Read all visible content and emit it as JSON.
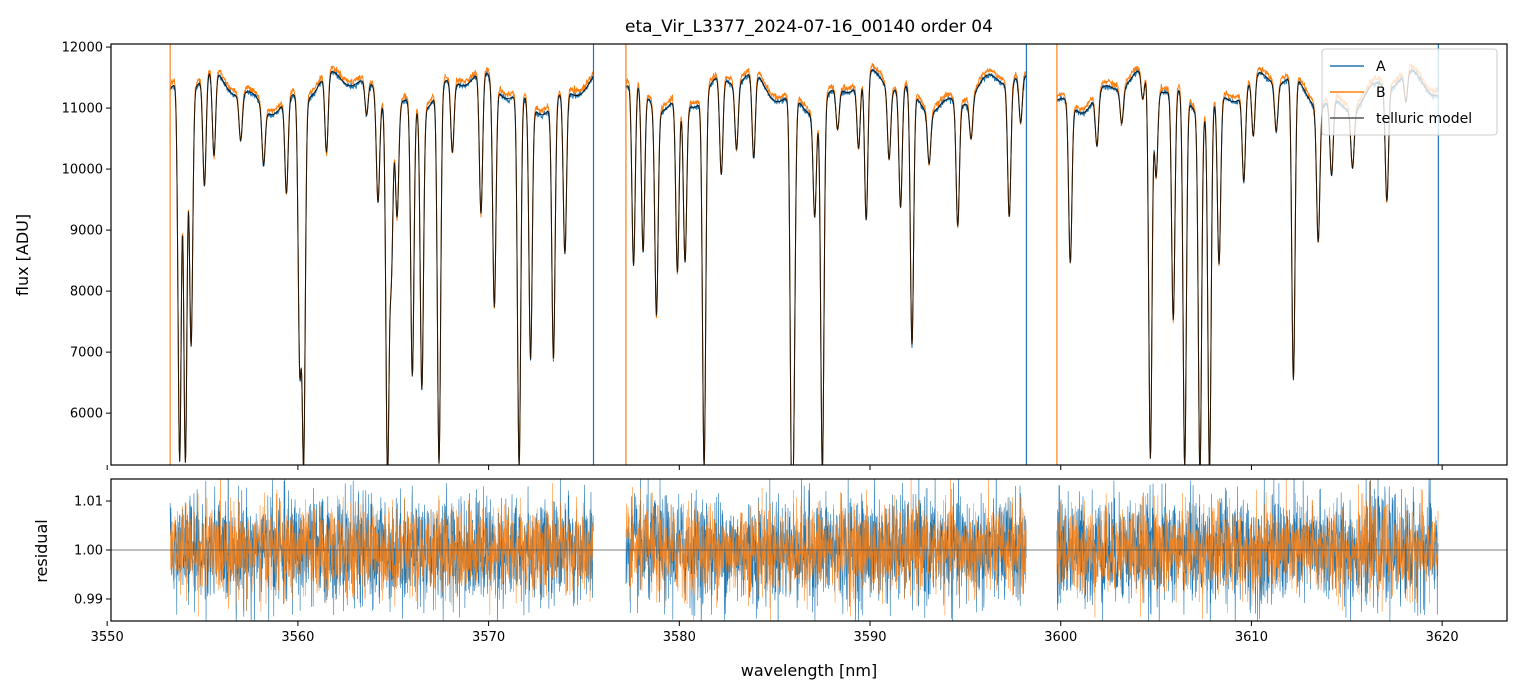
{
  "chart_data": [
    {
      "type": "line",
      "title": "eta_Vir_L3377_2024-07-16_00140  order 04",
      "xlabel": "",
      "ylabel": "flux [ADU]",
      "xlim": [
        3550.2,
        3623.4
      ],
      "ylim": [
        5150,
        12050
      ],
      "yticks": [
        6000,
        7000,
        8000,
        9000,
        10000,
        11000,
        12000
      ],
      "ytick_labels": [
        "6000",
        "7000",
        "8000",
        "9000",
        "10000",
        "11000",
        "12000"
      ],
      "xticks": [
        3550,
        3560,
        3570,
        3580,
        3590,
        3600,
        3610,
        3620
      ],
      "grid": false,
      "legend_position": "top-right",
      "series": [
        {
          "name": "A",
          "color": "#1f77b4",
          "continuum": 11250,
          "segments": [
            [
              3553.3,
              3575.5
            ],
            [
              3577.2,
              3598.2
            ],
            [
              3599.8,
              3619.8
            ]
          ]
        },
        {
          "name": "B",
          "color": "#ff7f0e",
          "continuum": 11330,
          "segments": [
            [
              3553.3,
              3575.5
            ],
            [
              3577.2,
              3598.2
            ],
            [
              3599.8,
              3619.8
            ]
          ]
        },
        {
          "name": "telluric model",
          "color": "#000000",
          "segments": [
            [
              3553.3,
              3575.5
            ],
            [
              3577.2,
              3598.2
            ],
            [
              3599.8,
              3619.8
            ]
          ]
        }
      ],
      "absorption_lines": [
        {
          "x": 3553.8,
          "y": 5150
        },
        {
          "x": 3554.1,
          "y": 5150
        },
        {
          "x": 3554.4,
          "y": 7050
        },
        {
          "x": 3555.1,
          "y": 9500
        },
        {
          "x": 3555.6,
          "y": 9900
        },
        {
          "x": 3557.0,
          "y": 10500
        },
        {
          "x": 3558.2,
          "y": 10300
        },
        {
          "x": 3559.4,
          "y": 9700
        },
        {
          "x": 3560.1,
          "y": 6850
        },
        {
          "x": 3560.3,
          "y": 5300
        },
        {
          "x": 3561.5,
          "y": 10000
        },
        {
          "x": 3563.6,
          "y": 10700
        },
        {
          "x": 3564.2,
          "y": 9500
        },
        {
          "x": 3564.9,
          "y": 8600
        },
        {
          "x": 3564.7,
          "y": 5150
        },
        {
          "x": 3565.2,
          "y": 9400
        },
        {
          "x": 3566.0,
          "y": 6700
        },
        {
          "x": 3566.5,
          "y": 6550
        },
        {
          "x": 3567.4,
          "y": 5150
        },
        {
          "x": 3568.1,
          "y": 10100
        },
        {
          "x": 3569.6,
          "y": 9000
        },
        {
          "x": 3570.3,
          "y": 7650
        },
        {
          "x": 3571.6,
          "y": 5150
        },
        {
          "x": 3572.2,
          "y": 7000
        },
        {
          "x": 3573.4,
          "y": 7000
        },
        {
          "x": 3574.0,
          "y": 8600
        },
        {
          "x": 3577.6,
          "y": 8300
        },
        {
          "x": 3578.1,
          "y": 8600
        },
        {
          "x": 3578.8,
          "y": 7800
        },
        {
          "x": 3579.9,
          "y": 8400
        },
        {
          "x": 3580.3,
          "y": 8600
        },
        {
          "x": 3581.3,
          "y": 5150
        },
        {
          "x": 3582.2,
          "y": 9700
        },
        {
          "x": 3583.0,
          "y": 10200
        },
        {
          "x": 3583.9,
          "y": 9900
        },
        {
          "x": 3585.9,
          "y": 5150
        },
        {
          "x": 3586.0,
          "y": 7600
        },
        {
          "x": 3587.1,
          "y": 9500
        },
        {
          "x": 3587.5,
          "y": 5150
        },
        {
          "x": 3588.3,
          "y": 10600
        },
        {
          "x": 3589.4,
          "y": 10200
        },
        {
          "x": 3589.8,
          "y": 8900
        },
        {
          "x": 3591.0,
          "y": 10100
        },
        {
          "x": 3591.6,
          "y": 9300
        },
        {
          "x": 3592.2,
          "y": 7100
        },
        {
          "x": 3593.1,
          "y": 10400
        },
        {
          "x": 3594.6,
          "y": 9200
        },
        {
          "x": 3595.3,
          "y": 10600
        },
        {
          "x": 3597.3,
          "y": 9100
        },
        {
          "x": 3597.9,
          "y": 10500
        },
        {
          "x": 3600.5,
          "y": 8600
        },
        {
          "x": 3601.9,
          "y": 10400
        },
        {
          "x": 3603.2,
          "y": 10700
        },
        {
          "x": 3604.3,
          "y": 10800
        },
        {
          "x": 3605.0,
          "y": 9800
        },
        {
          "x": 3604.7,
          "y": 5150
        },
        {
          "x": 3605.9,
          "y": 7500
        },
        {
          "x": 3606.5,
          "y": 5150
        },
        {
          "x": 3607.3,
          "y": 5150
        },
        {
          "x": 3607.8,
          "y": 5150
        },
        {
          "x": 3608.3,
          "y": 8500
        },
        {
          "x": 3609.6,
          "y": 9800
        },
        {
          "x": 3610.1,
          "y": 10300
        },
        {
          "x": 3611.3,
          "y": 10500
        },
        {
          "x": 3612.2,
          "y": 6400
        },
        {
          "x": 3613.5,
          "y": 9000
        },
        {
          "x": 3614.2,
          "y": 10000
        },
        {
          "x": 3615.3,
          "y": 10300
        },
        {
          "x": 3617.1,
          "y": 9400
        },
        {
          "x": 3618.1,
          "y": 10800
        }
      ],
      "edge_spikes": [
        3553.3,
        3575.5,
        3577.2,
        3598.2,
        3599.8,
        3619.8
      ]
    },
    {
      "type": "line",
      "title": "",
      "xlabel": "wavelength [nm]",
      "ylabel": "residual",
      "xlim": [
        3550.2,
        3623.4
      ],
      "ylim": [
        0.9855,
        1.0145
      ],
      "yticks": [
        0.99,
        1.0,
        1.01
      ],
      "ytick_labels": [
        "0.99",
        "1.00",
        "1.01"
      ],
      "xticks": [
        3550,
        3560,
        3570,
        3580,
        3590,
        3600,
        3610,
        3620
      ],
      "xtick_labels": [
        "3550",
        "3560",
        "3570",
        "3580",
        "3590",
        "3600",
        "3610",
        "3620"
      ],
      "reference_line": 1.0,
      "grid": false,
      "series": [
        {
          "name": "A",
          "color": "#1f77b4",
          "noise_sigma": 0.0055,
          "segments": [
            [
              3553.3,
              3575.5
            ],
            [
              3577.2,
              3598.2
            ],
            [
              3599.8,
              3619.8
            ]
          ]
        },
        {
          "name": "B",
          "color": "#ff7f0e",
          "noise_sigma": 0.0045,
          "segments": [
            [
              3553.3,
              3575.5
            ],
            [
              3577.2,
              3598.2
            ],
            [
              3599.8,
              3619.8
            ]
          ]
        }
      ]
    }
  ]
}
